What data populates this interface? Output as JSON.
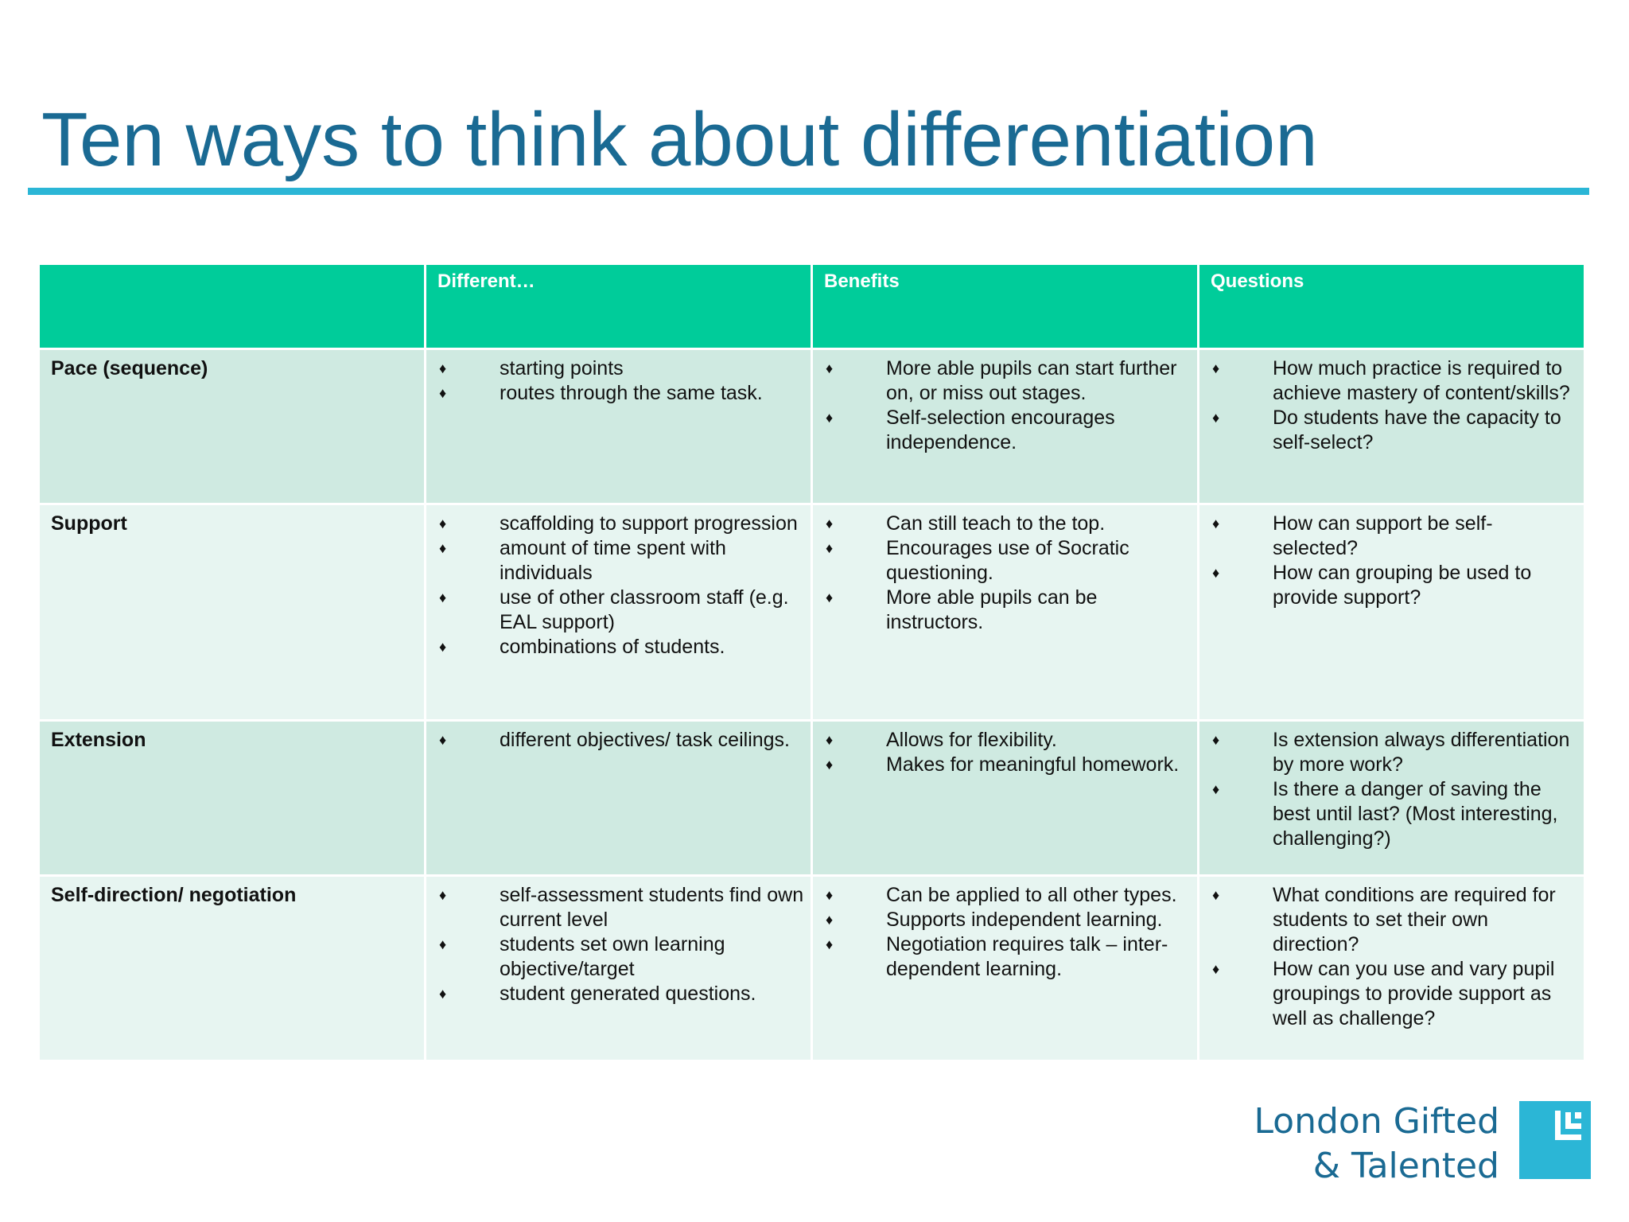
{
  "title": "Ten ways to think about differentiation",
  "table": {
    "headers": [
      "",
      "Different…",
      "Benefits",
      "Questions"
    ],
    "rows": [
      {
        "label": "Pace (sequence)",
        "different": [
          "starting points",
          "routes through the same task."
        ],
        "benefits": [
          "More able pupils can start further on, or miss out stages.",
          "Self-selection encourages independence."
        ],
        "questions": [
          "How much practice is required to achieve mastery of content/skills?",
          "Do students have the capacity to self-select?"
        ]
      },
      {
        "label": "Support",
        "different": [
          "scaffolding to support progression",
          "amount of time spent with individuals",
          "use of other classroom staff (e.g. EAL support)",
          "combinations of students."
        ],
        "benefits": [
          "Can still teach to the top.",
          "Encourages use of Socratic questioning.",
          "More able pupils can be instructors."
        ],
        "questions": [
          "How can support be self-selected?",
          "How can grouping be used to provide support?"
        ]
      },
      {
        "label": "Extension",
        "different": [
          "different objectives/ task ceilings."
        ],
        "benefits": [
          "Allows for flexibility.",
          "Makes for meaningful homework."
        ],
        "questions": [
          "Is extension always differentiation by more work?",
          "Is there a danger of saving the best until last? (Most interesting, challenging?)"
        ]
      },
      {
        "label": "Self-direction/ negotiation",
        "different": [
          "self-assessment students find own current level",
          "students set own learning objective/target",
          "student generated questions."
        ],
        "benefits": [
          "Can be applied to all other types.",
          "Supports independent learning.",
          "Negotiation requires talk – inter-dependent learning."
        ],
        "questions": [
          "What conditions are required for students to set their own direction?",
          "How can you use and vary pupil groupings to provide support as well as challenge?"
        ]
      }
    ]
  },
  "logo": {
    "line1": "London Gifted",
    "line2": "& Talented"
  },
  "bullet_glyph": "♦",
  "colors": {
    "title": "#1a6a93",
    "rule": "#2bb6d6",
    "header_bg": "#00cc9a",
    "row_dark": "#cfeae1",
    "row_light": "#e7f5f1",
    "logo_mark": "#2bb6d6"
  }
}
